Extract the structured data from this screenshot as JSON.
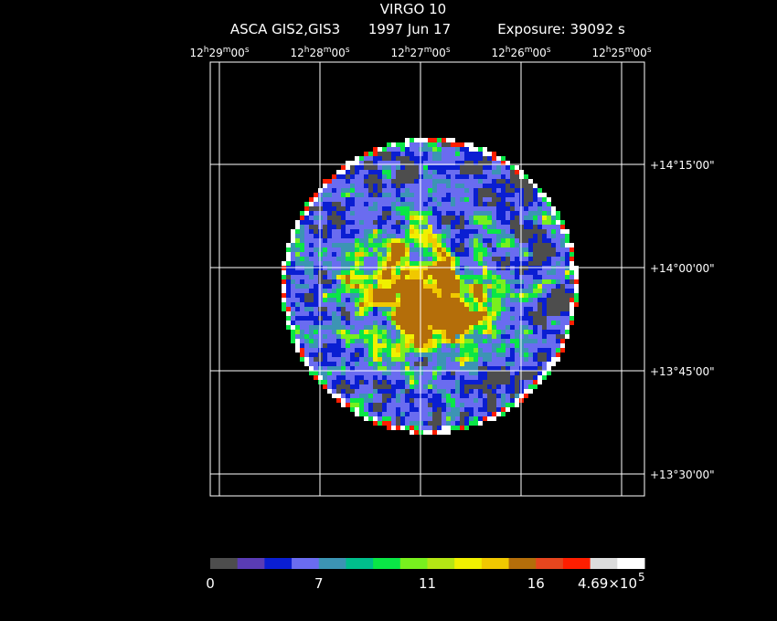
{
  "header": {
    "title": "VIRGO 10",
    "instrument": "ASCA GIS2,GIS3",
    "date": "1997 Jun 17",
    "exposure": "Exposure: 39092 s"
  },
  "ra_labels": [
    "12h29m00s",
    "12h28m00s",
    "12h27m00s",
    "12h26m00s",
    "12h25m00s"
  ],
  "dec_labels": [
    "+14°15'00\"",
    "+14°00'00\"",
    "+13°45'00\"",
    "+13°30'00\""
  ],
  "colorbar": {
    "colors": [
      "#4d4d4d",
      "#5a3cb4",
      "#0a1ed2",
      "#6a6cf0",
      "#3c94b4",
      "#00be8c",
      "#0ae646",
      "#78f01e",
      "#b4e614",
      "#f0f000",
      "#f0c800",
      "#b46e0a",
      "#e6461e",
      "#ff1e00",
      "#dcdcdc",
      "#ffffff"
    ],
    "labels": [
      "0",
      "7",
      "11",
      "16",
      "4.69×10",
      "5"
    ]
  }
}
